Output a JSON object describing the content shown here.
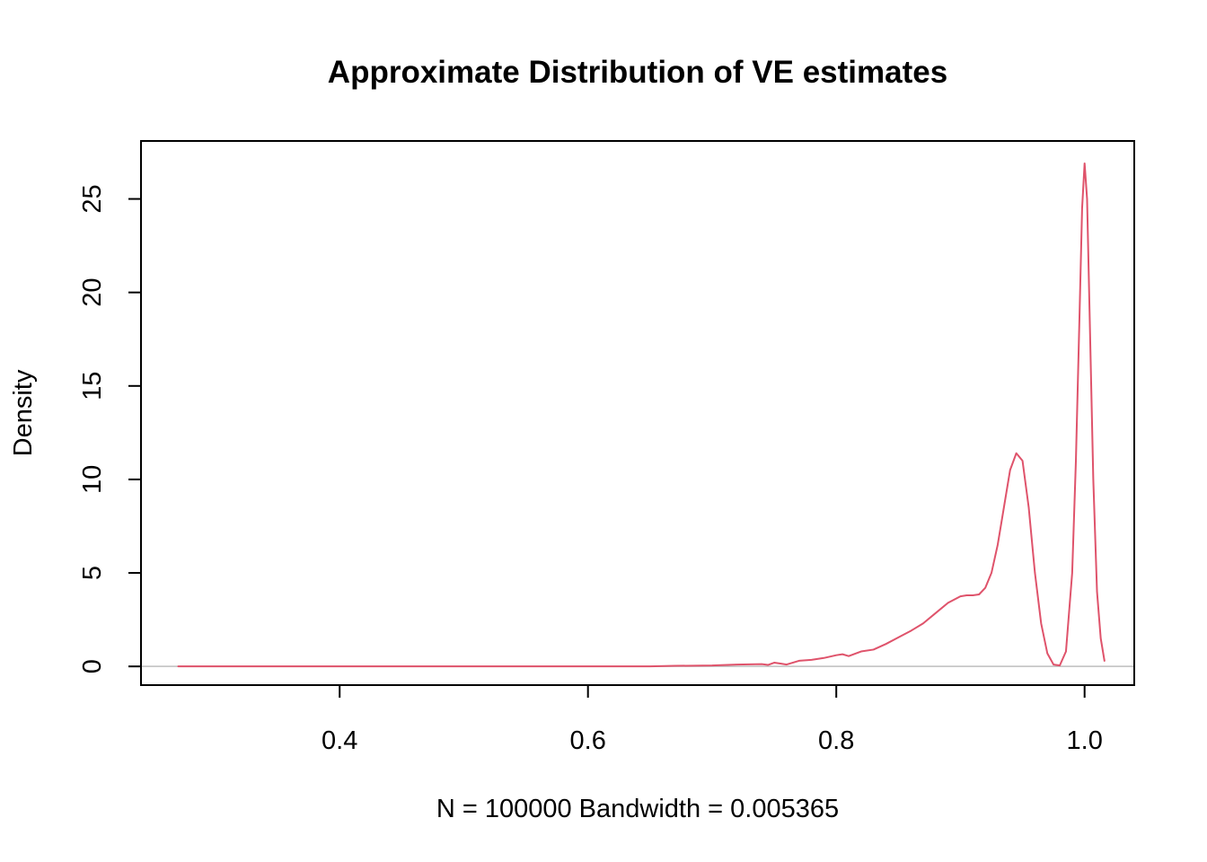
{
  "chart_data": {
    "type": "line",
    "title": "Approximate Distribution of VE estimates",
    "xlabel": "N = 100000   Bandwidth = 0.005365",
    "ylabel": "Density",
    "xlim": [
      0.24,
      1.04
    ],
    "ylim": [
      -1.0,
      28.1
    ],
    "x_ticks": [
      0.4,
      0.6,
      0.8,
      1.0
    ],
    "x_tick_labels": [
      "0.4",
      "0.6",
      "0.8",
      "1.0"
    ],
    "y_ticks": [
      0,
      5,
      10,
      15,
      20,
      25
    ],
    "y_tick_labels": [
      "0",
      "5",
      "10",
      "15",
      "20",
      "25"
    ],
    "grid": false,
    "reference_line": {
      "y": 0,
      "color": "#bebebe"
    },
    "series": [
      {
        "color": "#df536b",
        "x": [
          0.27,
          0.3,
          0.35,
          0.4,
          0.45,
          0.5,
          0.55,
          0.6,
          0.65,
          0.67,
          0.7,
          0.72,
          0.74,
          0.745,
          0.75,
          0.755,
          0.76,
          0.77,
          0.78,
          0.79,
          0.8,
          0.805,
          0.81,
          0.82,
          0.83,
          0.84,
          0.85,
          0.86,
          0.87,
          0.88,
          0.89,
          0.9,
          0.905,
          0.91,
          0.915,
          0.92,
          0.925,
          0.93,
          0.935,
          0.94,
          0.945,
          0.95,
          0.955,
          0.96,
          0.965,
          0.97,
          0.975,
          0.98,
          0.985,
          0.99,
          0.993,
          0.996,
          0.998,
          1.0,
          1.002,
          1.004,
          1.007,
          1.01,
          1.013,
          1.016
        ],
        "y": [
          0,
          0,
          0,
          0,
          0,
          0,
          0,
          0,
          0,
          0.03,
          0.05,
          0.1,
          0.12,
          0.08,
          0.2,
          0.15,
          0.1,
          0.3,
          0.35,
          0.45,
          0.6,
          0.65,
          0.55,
          0.8,
          0.9,
          1.2,
          1.55,
          1.9,
          2.3,
          2.85,
          3.4,
          3.75,
          3.8,
          3.8,
          3.85,
          4.2,
          5.0,
          6.5,
          8.5,
          10.5,
          11.4,
          11.0,
          8.5,
          5.0,
          2.3,
          0.7,
          0.1,
          0.05,
          0.8,
          5.0,
          11.0,
          19.0,
          24.5,
          26.9,
          25.0,
          19.0,
          10.0,
          4.0,
          1.5,
          0.3
        ]
      }
    ]
  }
}
